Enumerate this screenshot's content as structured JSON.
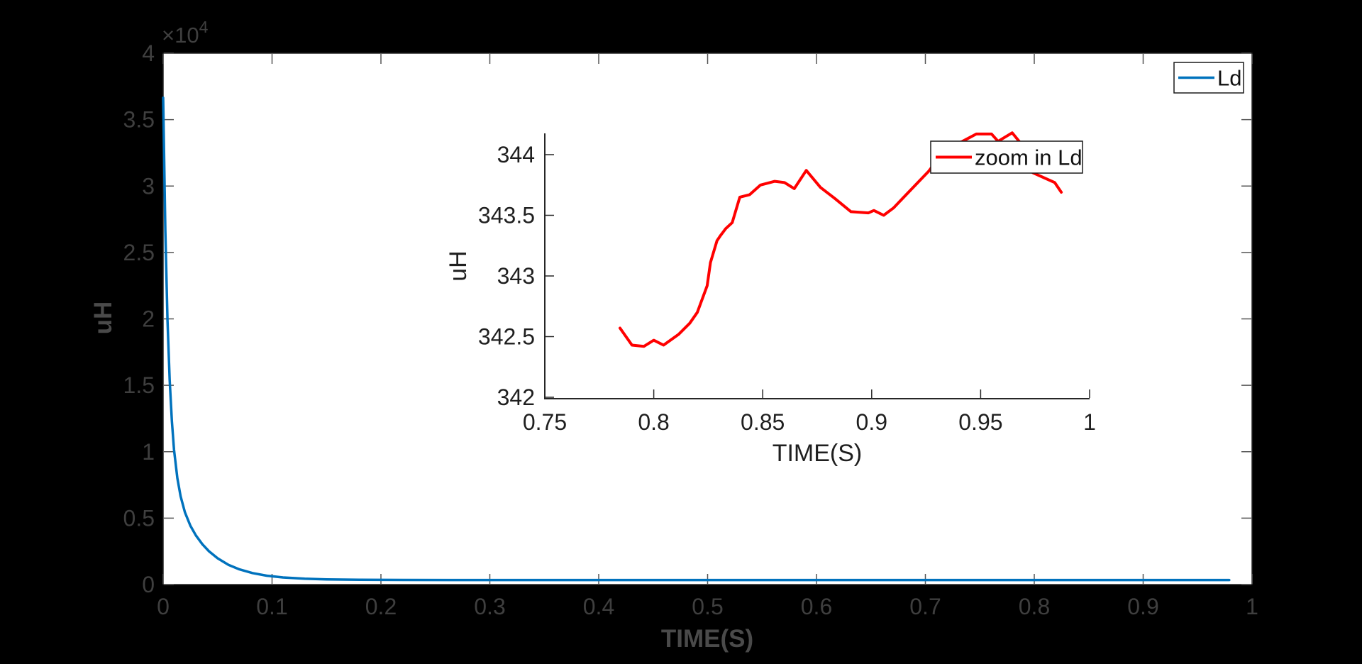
{
  "figure": {
    "background": "#000000",
    "plot_background": "#ffffff"
  },
  "colors": {
    "ld_line": "#0072bd",
    "zoom_ld_line": "#ff0000",
    "outer_text": "#3f3f3f",
    "outer_axis_label": "#4a4a4a",
    "inset_text": "#1f1f1f",
    "axis_line": "#262626",
    "tick_mark_main": "#555555",
    "legend_border": "#1a1a1a",
    "legend_background": "#ffffff"
  },
  "chart_data": [
    {
      "type": "line",
      "role": "main-axes",
      "title": "",
      "xlabel": "TIME(S)",
      "ylabel": "uH",
      "xlim": [
        0,
        1
      ],
      "ylim": [
        0,
        40000
      ],
      "grid": false,
      "box": true,
      "x_ticks": [
        0,
        0.1,
        0.2,
        0.3,
        0.4,
        0.5,
        0.6,
        0.7,
        0.8,
        0.9,
        1
      ],
      "x_tick_labels": [
        "0",
        "0.1",
        "0.2",
        "0.3",
        "0.4",
        "0.5",
        "0.6",
        "0.7",
        "0.8",
        "0.9",
        "1"
      ],
      "y_ticks": [
        0,
        5000,
        10000,
        15000,
        20000,
        25000,
        30000,
        35000,
        40000
      ],
      "y_tick_labels": [
        "0",
        "0.5",
        "1",
        "1.5",
        "2",
        "2.5",
        "3",
        "3.5",
        "4"
      ],
      "y_axis_multiplier": {
        "base": "×10",
        "exponent": "4"
      },
      "legend": {
        "position": "top-right",
        "entries": [
          {
            "label": "Ld",
            "color": "#0072bd"
          }
        ]
      },
      "series": [
        {
          "name": "Ld",
          "color": "#0072bd",
          "points_t_uH": [
            [
              0,
              36643
            ],
            [
              0.002,
              26600
            ],
            [
              0.004,
              19897
            ],
            [
              0.006,
              15386
            ],
            [
              0.008,
              12301
            ],
            [
              0.01,
              10152
            ],
            [
              0.013,
              8014
            ],
            [
              0.016,
              6643
            ],
            [
              0.02,
              5434
            ],
            [
              0.025,
              4429
            ],
            [
              0.03,
              3701
            ],
            [
              0.036,
              3034
            ],
            [
              0.042,
              2510
            ],
            [
              0.05,
              1974
            ],
            [
              0.06,
              1484
            ],
            [
              0.07,
              1142
            ],
            [
              0.082,
              863
            ],
            [
              0.095,
              670
            ],
            [
              0.11,
              534
            ],
            [
              0.13,
              436
            ],
            [
              0.15,
              389
            ],
            [
              0.18,
              359
            ],
            [
              0.22,
              347
            ],
            [
              0.27,
              344
            ],
            [
              0.33,
              343
            ],
            [
              0.4,
              343
            ],
            [
              0.5,
              343
            ],
            [
              0.6,
              343
            ],
            [
              0.7,
              343
            ],
            [
              0.8,
              343
            ],
            [
              0.9,
              343
            ],
            [
              0.979,
              343
            ]
          ]
        }
      ]
    },
    {
      "type": "line",
      "role": "inset-zoom-axes",
      "title": "",
      "xlabel": "TIME(S)",
      "ylabel": "uH",
      "xlim": [
        0.75,
        1
      ],
      "ylim": [
        342,
        344.2
      ],
      "grid": false,
      "box": false,
      "x_ticks": [
        0.75,
        0.8,
        0.85,
        0.9,
        0.95,
        1
      ],
      "x_tick_labels": [
        "0.75",
        "0.8",
        "0.85",
        "0.9",
        "0.95",
        "1"
      ],
      "y_ticks": [
        342,
        342.5,
        343,
        343.5,
        344
      ],
      "y_tick_labels": [
        "342",
        "342.5",
        "343",
        "343.5",
        "344"
      ],
      "legend": {
        "position": "upper-right-inside",
        "entries": [
          {
            "label": "zoom in Ld",
            "color": "#ff0000"
          }
        ]
      },
      "series": [
        {
          "name": "zoom in Ld",
          "color": "#ff0000",
          "points_t_uH": [
            [
              0.7845,
              342.57
            ],
            [
              0.79,
              342.43
            ],
            [
              0.7955,
              342.42
            ],
            [
              0.8,
              342.47
            ],
            [
              0.8045,
              342.43
            ],
            [
              0.8115,
              342.52
            ],
            [
              0.8165,
              342.61
            ],
            [
              0.82,
              342.7
            ],
            [
              0.8245,
              342.92
            ],
            [
              0.826,
              343.11
            ],
            [
              0.829,
              343.29
            ],
            [
              0.8305,
              343.33
            ],
            [
              0.833,
              343.39
            ],
            [
              0.836,
              343.44
            ],
            [
              0.8395,
              343.65
            ],
            [
              0.844,
              343.67
            ],
            [
              0.849,
              343.75
            ],
            [
              0.8555,
              343.78
            ],
            [
              0.86,
              343.77
            ],
            [
              0.8645,
              343.72
            ],
            [
              0.87,
              343.87
            ],
            [
              0.8765,
              343.73
            ],
            [
              0.883,
              343.64
            ],
            [
              0.8905,
              343.53
            ],
            [
              0.8985,
              343.52
            ],
            [
              0.901,
              343.54
            ],
            [
              0.9055,
              343.5
            ],
            [
              0.91,
              343.56
            ],
            [
              0.919,
              343.73
            ],
            [
              0.926,
              343.86
            ],
            [
              0.934,
              344.05
            ],
            [
              0.9417,
              344.11
            ],
            [
              0.948,
              344.17
            ],
            [
              0.955,
              344.17
            ],
            [
              0.958,
              344.11
            ],
            [
              0.9645,
              344.18
            ],
            [
              0.969,
              344.08
            ],
            [
              0.974,
              343.85
            ],
            [
              0.984,
              343.77
            ],
            [
              0.987,
              343.69
            ]
          ]
        }
      ]
    }
  ]
}
